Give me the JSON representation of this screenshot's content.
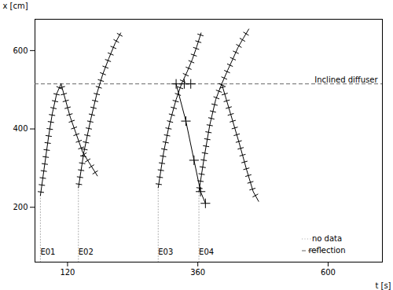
{
  "chart_data": {
    "type": "line",
    "xlabel": "t [s]",
    "ylabel": "x [cm]",
    "xlim": [
      60,
      700
    ],
    "ylim": [
      60,
      680
    ],
    "xticks": [
      120,
      360,
      600
    ],
    "yticks": [
      200,
      400,
      600
    ],
    "grid": false,
    "legend": "lower right",
    "series": [
      {
        "name": "no data",
        "color": "#aaaaaa",
        "line_style": "dotted",
        "x": [
          70,
          70,
          null,
          140,
          140,
          null,
          287,
          287,
          null,
          362,
          362
        ],
        "values": [
          60,
          230,
          null,
          60,
          250,
          null,
          60,
          250,
          null,
          60,
          240
        ]
      },
      {
        "name": "reflection",
        "type": "hline",
        "color": "#666666",
        "line_style": "dashed",
        "values": [
          515
        ]
      },
      {
        "color": "#000000",
        "marker": "tick",
        "x": [
          70,
          78,
          85,
          92,
          100,
          108
        ],
        "values": [
          230,
          310,
          380,
          440,
          490,
          515
        ]
      },
      {
        "color": "#000000",
        "marker": "tick",
        "x": [
          108,
          125,
          148,
          175
        ],
        "values": [
          515,
          430,
          340,
          280
        ]
      },
      {
        "color": "#000000",
        "marker": "tick",
        "x": [
          140,
          150,
          162,
          174,
          185,
          196,
          208,
          218
        ],
        "values": [
          250,
          340,
          420,
          490,
          540,
          580,
          620,
          645
        ]
      },
      {
        "color": "#000000",
        "marker": "tick",
        "x": [
          287,
          297,
          308,
          320,
          330,
          340,
          350,
          358,
          366
        ],
        "values": [
          250,
          340,
          415,
          475,
          515,
          545,
          578,
          610,
          645
        ]
      },
      {
        "color": "#000000",
        "marker": "+",
        "x": [
          320,
          338,
          353,
          365,
          374
        ],
        "values": [
          515,
          420,
          320,
          240,
          210
        ]
      },
      {
        "color": "#000000",
        "marker": "+",
        "line_style": "none",
        "x": [
          335,
          347
        ],
        "values": [
          515,
          515
        ]
      },
      {
        "color": "#000000",
        "marker": "tick",
        "x": [
          362,
          372,
          382,
          393,
          404,
          415,
          425,
          434,
          444,
          454
        ],
        "values": [
          240,
          330,
          410,
          475,
          515,
          550,
          580,
          608,
          632,
          655
        ]
      },
      {
        "color": "#000000",
        "marker": "tick",
        "x": [
          404,
          420,
          436,
          450,
          462,
          472
        ],
        "values": [
          515,
          440,
          365,
          295,
          240,
          215
        ]
      }
    ],
    "annotations": [
      {
        "text": "Inclined diffuser",
        "y": 515
      },
      {
        "text": "E01",
        "x": 70,
        "y": 80
      },
      {
        "text": "E02",
        "x": 140,
        "y": 80
      },
      {
        "text": "E03",
        "x": 287,
        "y": 80
      },
      {
        "text": "E04",
        "x": 362,
        "y": 80
      }
    ]
  }
}
